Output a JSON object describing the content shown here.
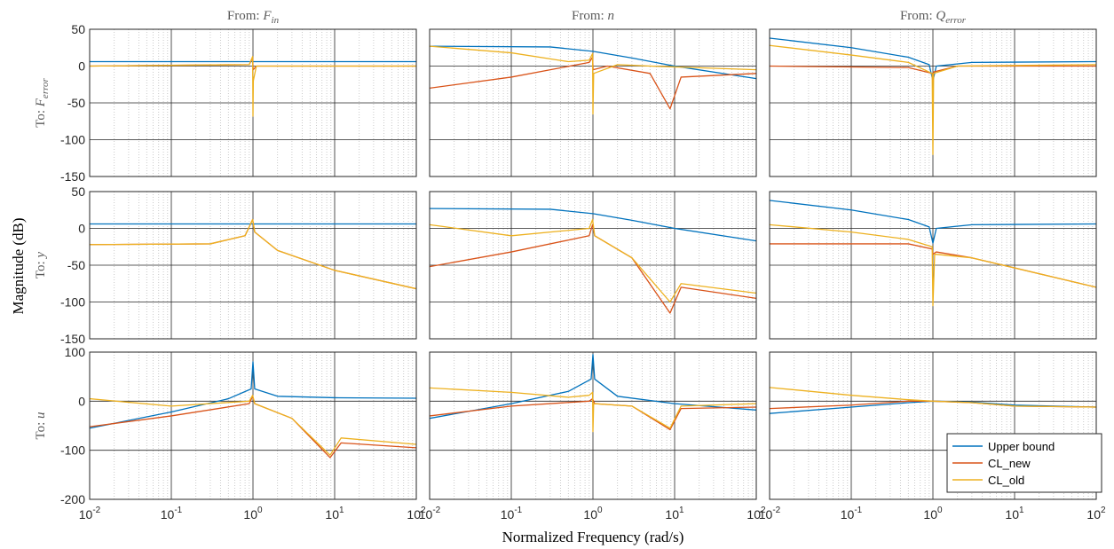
{
  "chart_data": {
    "type": "line",
    "xlabel": "Normalized Frequency (rad/s)",
    "ylabel": "Magnitude (dB)",
    "xscale": "log",
    "xlim": [
      0.01,
      100
    ],
    "x_tick_labels": [
      "10",
      "10",
      "10",
      "10",
      "10"
    ],
    "x_tick_exponents": [
      "-2",
      "-1",
      "0",
      "1",
      "2"
    ],
    "grid": true,
    "legend": {
      "placement": "bottom-right",
      "entries": [
        "Upper bound",
        "CL_new",
        "CL_old"
      ]
    },
    "series_colors": {
      "Upper bound": "#0072bd",
      "CL_new": "#d95319",
      "CL_old": "#edb120"
    },
    "columns": [
      {
        "prefix": "From: ",
        "sym": "F",
        "sub": "in"
      },
      {
        "prefix": "From: ",
        "sym": "n",
        "sub": ""
      },
      {
        "prefix": "From: ",
        "sym": "Q",
        "sub": "error"
      }
    ],
    "rows": [
      {
        "prefix": "To: ",
        "sym": "F",
        "sub": "error",
        "ylim": [
          -150,
          50
        ],
        "yticks": [
          "50",
          "0",
          "-50",
          "-100",
          "-150"
        ]
      },
      {
        "prefix": "To: ",
        "sym": "y",
        "sub": "",
        "ylim": [
          -150,
          50
        ],
        "yticks": [
          "50",
          "0",
          "-50",
          "-100",
          "-150"
        ]
      },
      {
        "prefix": "To: ",
        "sym": "u",
        "sub": "",
        "ylim": [
          -200,
          100
        ],
        "yticks": [
          "100",
          "0",
          "-100",
          "-200"
        ]
      }
    ],
    "panels": [
      [
        {
          "Upper bound": [
            [
              0.01,
              6
            ],
            [
              100,
              6
            ]
          ],
          "CL_new": [
            [
              0.01,
              0
            ],
            [
              0.9,
              2
            ],
            [
              0.99,
              11
            ],
            [
              1.005,
              -5
            ],
            [
              1.1,
              0
            ],
            [
              100,
              0
            ]
          ],
          "CL_old": [
            [
              0.01,
              0
            ],
            [
              0.9,
              2
            ],
            [
              0.99,
              13
            ],
            [
              1.0,
              -68
            ],
            [
              1.01,
              -20
            ],
            [
              1.1,
              0
            ],
            [
              100,
              0
            ]
          ]
        },
        {
          "Upper bound": [
            [
              0.01,
              27
            ],
            [
              0.3,
              26
            ],
            [
              1,
              20
            ],
            [
              3,
              11
            ],
            [
              10,
              0
            ],
            [
              100,
              -17
            ]
          ],
          "CL_new": [
            [
              0.01,
              -30
            ],
            [
              0.1,
              -15
            ],
            [
              0.9,
              5
            ],
            [
              0.99,
              12
            ],
            [
              1.005,
              -5
            ],
            [
              1.5,
              0
            ],
            [
              5,
              -10
            ],
            [
              8.8,
              -58
            ],
            [
              12,
              -15
            ],
            [
              100,
              -10
            ]
          ],
          "CL_old": [
            [
              0.01,
              27
            ],
            [
              0.1,
              18
            ],
            [
              0.5,
              6
            ],
            [
              0.9,
              8
            ],
            [
              0.99,
              17
            ],
            [
              1.0,
              -65
            ],
            [
              1.02,
              -10
            ],
            [
              2,
              2
            ],
            [
              5,
              0
            ],
            [
              100,
              -5
            ]
          ]
        },
        {
          "Upper bound": [
            [
              0.01,
              38
            ],
            [
              0.1,
              25
            ],
            [
              0.5,
              12
            ],
            [
              0.9,
              2
            ],
            [
              1.0,
              -20
            ],
            [
              1.1,
              0
            ],
            [
              3,
              5
            ],
            [
              100,
              6
            ]
          ],
          "CL_new": [
            [
              0.01,
              0
            ],
            [
              0.5,
              -2
            ],
            [
              0.98,
              -10
            ],
            [
              1.0,
              -22
            ],
            [
              1.02,
              -8
            ],
            [
              2,
              0
            ],
            [
              100,
              0
            ]
          ],
          "CL_old": [
            [
              0.01,
              28
            ],
            [
              0.1,
              15
            ],
            [
              0.5,
              5
            ],
            [
              0.98,
              -10
            ],
            [
              1.0,
              -120
            ],
            [
              1.02,
              -10
            ],
            [
              2,
              0
            ],
            [
              100,
              2
            ]
          ]
        }
      ],
      [
        {
          "Upper bound": [
            [
              0.01,
              6
            ],
            [
              100,
              6
            ]
          ],
          "CL_new": [
            [
              0.01,
              -22
            ],
            [
              0.3,
              -21
            ],
            [
              0.8,
              -10
            ],
            [
              0.99,
              12
            ],
            [
              1.05,
              -5
            ],
            [
              2,
              -30
            ],
            [
              10,
              -57
            ],
            [
              100,
              -82
            ]
          ],
          "CL_old": [
            [
              0.01,
              -22
            ],
            [
              0.3,
              -21
            ],
            [
              0.8,
              -10
            ],
            [
              0.99,
              12
            ],
            [
              1.05,
              -5
            ],
            [
              2,
              -30
            ],
            [
              10,
              -57
            ],
            [
              100,
              -82
            ]
          ]
        },
        {
          "Upper bound": [
            [
              0.01,
              27
            ],
            [
              0.3,
              26
            ],
            [
              1,
              20
            ],
            [
              3,
              11
            ],
            [
              10,
              0
            ],
            [
              100,
              -17
            ]
          ],
          "CL_new": [
            [
              0.01,
              -52
            ],
            [
              0.1,
              -32
            ],
            [
              0.9,
              -10
            ],
            [
              0.99,
              5
            ],
            [
              1.05,
              -10
            ],
            [
              3,
              -40
            ],
            [
              8.8,
              -115
            ],
            [
              12,
              -80
            ],
            [
              100,
              -95
            ]
          ],
          "CL_old": [
            [
              0.01,
              5
            ],
            [
              0.1,
              -10
            ],
            [
              0.9,
              0
            ],
            [
              0.99,
              12
            ],
            [
              1.05,
              -10
            ],
            [
              3,
              -40
            ],
            [
              8.8,
              -100
            ],
            [
              12,
              -75
            ],
            [
              100,
              -88
            ]
          ]
        },
        {
          "Upper bound": [
            [
              0.01,
              38
            ],
            [
              0.1,
              25
            ],
            [
              0.5,
              12
            ],
            [
              0.9,
              2
            ],
            [
              1.0,
              -20
            ],
            [
              1.1,
              0
            ],
            [
              3,
              5
            ],
            [
              100,
              6
            ]
          ],
          "CL_new": [
            [
              0.01,
              -21
            ],
            [
              0.5,
              -21
            ],
            [
              0.98,
              -28
            ],
            [
              1.0,
              -35
            ],
            [
              1.1,
              -32
            ],
            [
              3,
              -40
            ],
            [
              100,
              -80
            ]
          ],
          "CL_old": [
            [
              0.01,
              5
            ],
            [
              0.1,
              -5
            ],
            [
              0.5,
              -15
            ],
            [
              0.98,
              -25
            ],
            [
              1.0,
              -105
            ],
            [
              1.05,
              -35
            ],
            [
              3,
              -40
            ],
            [
              100,
              -80
            ]
          ]
        }
      ],
      [
        {
          "Upper bound": [
            [
              0.01,
              -55
            ],
            [
              0.1,
              -22
            ],
            [
              0.5,
              5
            ],
            [
              0.95,
              25
            ],
            [
              1.0,
              80
            ],
            [
              1.05,
              25
            ],
            [
              2,
              10
            ],
            [
              10,
              7
            ],
            [
              100,
              6
            ]
          ],
          "CL_new": [
            [
              0.01,
              -52
            ],
            [
              0.1,
              -30
            ],
            [
              0.9,
              -5
            ],
            [
              0.99,
              10
            ],
            [
              1.05,
              -5
            ],
            [
              3,
              -35
            ],
            [
              8.8,
              -115
            ],
            [
              12,
              -85
            ],
            [
              100,
              -95
            ]
          ],
          "CL_old": [
            [
              0.01,
              5
            ],
            [
              0.1,
              -10
            ],
            [
              0.9,
              0
            ],
            [
              0.99,
              12
            ],
            [
              1.05,
              -5
            ],
            [
              3,
              -35
            ],
            [
              8.8,
              -110
            ],
            [
              12,
              -75
            ],
            [
              100,
              -88
            ]
          ]
        },
        {
          "Upper bound": [
            [
              0.01,
              -35
            ],
            [
              0.1,
              -5
            ],
            [
              0.5,
              20
            ],
            [
              0.95,
              45
            ],
            [
              1.0,
              95
            ],
            [
              1.05,
              45
            ],
            [
              2,
              10
            ],
            [
              10,
              -5
            ],
            [
              100,
              -18
            ]
          ],
          "CL_new": [
            [
              0.01,
              -30
            ],
            [
              0.1,
              -10
            ],
            [
              0.9,
              0
            ],
            [
              0.99,
              5
            ],
            [
              1.05,
              -5
            ],
            [
              3,
              -10
            ],
            [
              8.8,
              -58
            ],
            [
              12,
              -15
            ],
            [
              100,
              -12
            ]
          ],
          "CL_old": [
            [
              0.01,
              27
            ],
            [
              0.1,
              18
            ],
            [
              0.5,
              8
            ],
            [
              0.9,
              12
            ],
            [
              0.99,
              18
            ],
            [
              1.0,
              -62
            ],
            [
              1.02,
              -5
            ],
            [
              3,
              -10
            ],
            [
              8.8,
              -55
            ],
            [
              12,
              -10
            ],
            [
              100,
              -5
            ]
          ]
        },
        {
          "Upper bound": [
            [
              0.01,
              -25
            ],
            [
              0.1,
              -12
            ],
            [
              0.5,
              -3
            ],
            [
              1,
              0
            ],
            [
              3,
              -2
            ],
            [
              10,
              -8
            ],
            [
              100,
              -12
            ]
          ],
          "CL_new": [
            [
              0.01,
              -15
            ],
            [
              0.1,
              -8
            ],
            [
              0.5,
              0
            ],
            [
              1,
              0
            ],
            [
              3,
              -3
            ],
            [
              10,
              -10
            ],
            [
              100,
              -12
            ]
          ],
          "CL_old": [
            [
              0.01,
              28
            ],
            [
              0.1,
              12
            ],
            [
              0.5,
              3
            ],
            [
              1,
              0
            ],
            [
              3,
              -3
            ],
            [
              10,
              -10
            ],
            [
              100,
              -12
            ]
          ]
        }
      ]
    ]
  }
}
